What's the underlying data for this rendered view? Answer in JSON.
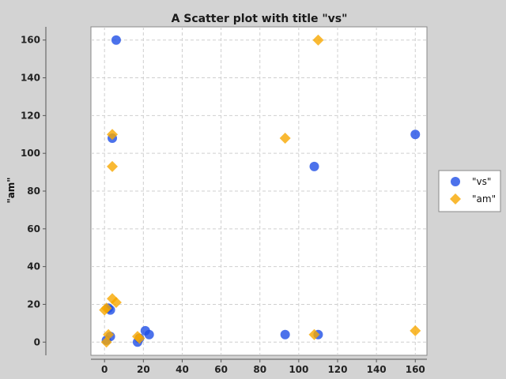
{
  "chart_data": {
    "type": "scatter",
    "title": "A Scatter plot with title \"vs\"",
    "xlabel": "",
    "ylabel": "\"am\"",
    "xlim": [
      -7,
      166
    ],
    "ylim": [
      -7,
      167
    ],
    "xticks": [
      0,
      20,
      40,
      60,
      80,
      100,
      120,
      140,
      160
    ],
    "yticks": [
      0,
      20,
      40,
      60,
      80,
      100,
      120,
      140,
      160
    ],
    "grid": true,
    "legend_position": "right",
    "series": [
      {
        "name": "\"vs\"",
        "marker": "circle",
        "color": "#1f4fe6",
        "points": [
          [
            6,
            160
          ],
          [
            160,
            110
          ],
          [
            4,
            108
          ],
          [
            108,
            93
          ],
          [
            2,
            18
          ],
          [
            3,
            17
          ],
          [
            3,
            3
          ],
          [
            1,
            1
          ],
          [
            17,
            0
          ],
          [
            18,
            2
          ],
          [
            21,
            6
          ],
          [
            23,
            4
          ],
          [
            93,
            4
          ],
          [
            110,
            4
          ]
        ]
      },
      {
        "name": "\"am\"",
        "marker": "diamond",
        "color": "#f7a800",
        "points": [
          [
            110,
            160
          ],
          [
            4,
            110
          ],
          [
            93,
            108
          ],
          [
            4,
            93
          ],
          [
            4,
            23
          ],
          [
            6,
            21
          ],
          [
            1,
            18
          ],
          [
            0,
            17
          ],
          [
            2,
            4
          ],
          [
            1,
            0
          ],
          [
            17,
            3
          ],
          [
            18,
            2
          ],
          [
            108,
            4
          ],
          [
            160,
            6
          ]
        ]
      }
    ]
  }
}
